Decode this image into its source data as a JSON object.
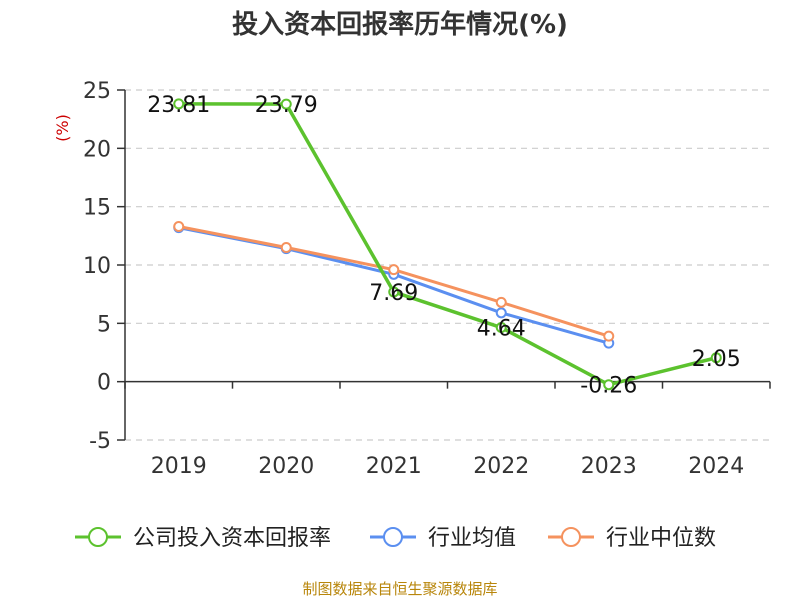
{
  "source_text": "制图数据来自恒生聚源数据库",
  "chart_data": {
    "type": "line",
    "title": "投入资本回报率历年情况(%)",
    "ylabel": "(%)",
    "xlabel": "",
    "categories": [
      "2019",
      "2020",
      "2021",
      "2022",
      "2023",
      "2024"
    ],
    "ylim": [
      -5,
      25
    ],
    "yticks": [
      -5,
      0,
      5,
      10,
      15,
      20,
      25
    ],
    "grid": true,
    "legend_position": "bottom",
    "series": [
      {
        "name": "公司投入资本回报率",
        "color": "#5cc22e",
        "values": [
          23.81,
          23.79,
          7.69,
          4.64,
          -0.26,
          2.05
        ],
        "data_labels": [
          "23.81",
          "23.79",
          "7.69",
          "4.64",
          "-0.26",
          "2.05"
        ]
      },
      {
        "name": "行业均值",
        "color": "#5b8ff0",
        "values": [
          13.2,
          11.4,
          9.2,
          5.9,
          3.3,
          null
        ]
      },
      {
        "name": "行业中位数",
        "color": "#f5925e",
        "values": [
          13.3,
          11.5,
          9.6,
          6.8,
          3.9,
          null
        ]
      }
    ]
  }
}
